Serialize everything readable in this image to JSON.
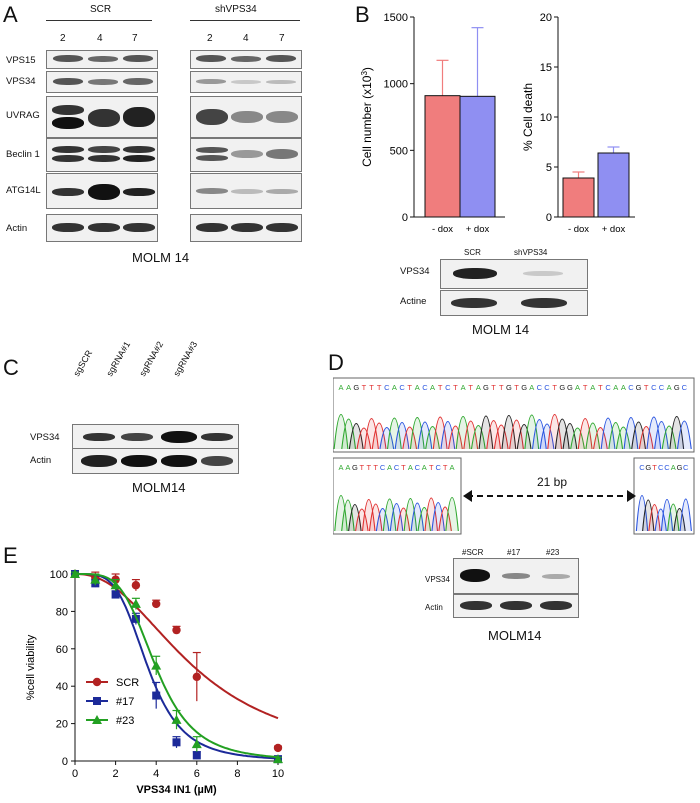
{
  "panels": {
    "a": "A",
    "b": "B",
    "c": "C",
    "d": "D",
    "e": "E"
  },
  "panel_a": {
    "group_scr": "SCR",
    "group_sh": "shVPS34",
    "days_scr": [
      "2",
      "4",
      "7"
    ],
    "days_sh": [
      "2",
      "4",
      "7"
    ],
    "rows": [
      "VPS15",
      "VPS34",
      "UVRAG",
      "Beclin 1",
      "ATG14L",
      "Actin"
    ],
    "caption": "MOLM 14"
  },
  "panel_b": {
    "blot_lanes": [
      "SCR",
      "shVPS34"
    ],
    "blot_rows": [
      "VPS34",
      "Actine"
    ],
    "caption": "MOLM 14"
  },
  "panel_c": {
    "lanes": [
      "sgSCR",
      "sgRNA#1",
      "sgRNA#2",
      "sgRNA#3"
    ],
    "rows": [
      "VPS34",
      "Actin"
    ],
    "caption": "MOLM14"
  },
  "panel_d": {
    "seq_top": [
      "A",
      "A",
      "G",
      "T",
      "T",
      "T",
      "C",
      "A",
      "C",
      "T",
      "A",
      "C",
      "A",
      "T",
      "C",
      "T",
      "A",
      "T",
      "A",
      "G",
      "T",
      "T",
      "G",
      "T",
      "G",
      "A",
      "C",
      "C",
      "T",
      "G",
      "G",
      "A",
      "T",
      "A",
      "T",
      "C",
      "A",
      "A",
      "C",
      "G",
      "T",
      "C",
      "C",
      "A",
      "G",
      "C"
    ],
    "seq_bottom_left": [
      "A",
      "A",
      "G",
      "T",
      "T",
      "T",
      "C",
      "A",
      "C",
      "T",
      "A",
      "C",
      "A",
      "T",
      "C",
      "T",
      "A"
    ],
    "seq_bottom_right": [
      "C",
      "G",
      "T",
      "C",
      "C",
      "A",
      "G",
      "C"
    ],
    "deletion_label": "21 bp",
    "blot_lanes": [
      "#SCR",
      "#17",
      "#23"
    ],
    "blot_rows": [
      "VPS34",
      "Actin"
    ],
    "caption": "MOLM14"
  },
  "colors": {
    "dox_minus": "#f07d7d",
    "dox_plus": "#8f8ff2",
    "scr": "#b22222",
    "c17": "#1c2a99",
    "c23": "#23a022"
  },
  "chart_data": [
    {
      "type": "bar",
      "categories": [
        "- dox",
        "+ dox"
      ],
      "values": [
        910,
        905
      ],
      "errors": [
        265,
        515
      ],
      "ylabel": "Cell number (x10",
      "ylabel_sup": "3",
      "ylabel_end": ")",
      "ylim": [
        0,
        1500
      ],
      "yticks": [
        "0",
        "500",
        "1000",
        "1500"
      ]
    },
    {
      "type": "bar",
      "categories": [
        "- dox",
        "+ dox"
      ],
      "values": [
        3.9,
        6.4
      ],
      "errors": [
        0.6,
        0.6
      ],
      "ylabel": "% Cell death",
      "ylim": [
        0,
        20
      ],
      "yticks": [
        "0",
        "5",
        "10",
        "15",
        "20"
      ]
    },
    {
      "type": "scatter",
      "xlabel": "VPS34 IN1 (µM)",
      "ylabel": "%cell viability",
      "xlim": [
        0,
        10
      ],
      "ylim": [
        0,
        100
      ],
      "xticks": [
        "0",
        "2",
        "4",
        "6",
        "8",
        "10"
      ],
      "yticks": [
        "0",
        "20",
        "40",
        "60",
        "80",
        "100"
      ],
      "series": [
        {
          "name": "SCR",
          "x": [
            0,
            1,
            2,
            3,
            4,
            5,
            6,
            10
          ],
          "y": [
            100,
            98,
            97,
            94,
            84,
            70,
            45,
            7
          ],
          "err": [
            1,
            3,
            3,
            3,
            2,
            2,
            13,
            1
          ],
          "ec50": 5.9,
          "hill": 2.3
        },
        {
          "name": "#17",
          "x": [
            0,
            1,
            2,
            3,
            4,
            5,
            6,
            10
          ],
          "y": [
            100,
            95,
            89,
            76,
            35,
            10,
            3,
            1
          ],
          "err": [
            1,
            2,
            2,
            3,
            7,
            3,
            2,
            1
          ],
          "ec50": 3.6,
          "hill": 4.2
        },
        {
          "name": "#23",
          "x": [
            0,
            1,
            2,
            3,
            4,
            5,
            6,
            10
          ],
          "y": [
            100,
            97,
            94,
            84,
            51,
            22,
            9,
            1
          ],
          "err": [
            1,
            3,
            3,
            3,
            5,
            5,
            4,
            1
          ],
          "ec50": 4.0,
          "hill": 4.2
        }
      ]
    }
  ]
}
